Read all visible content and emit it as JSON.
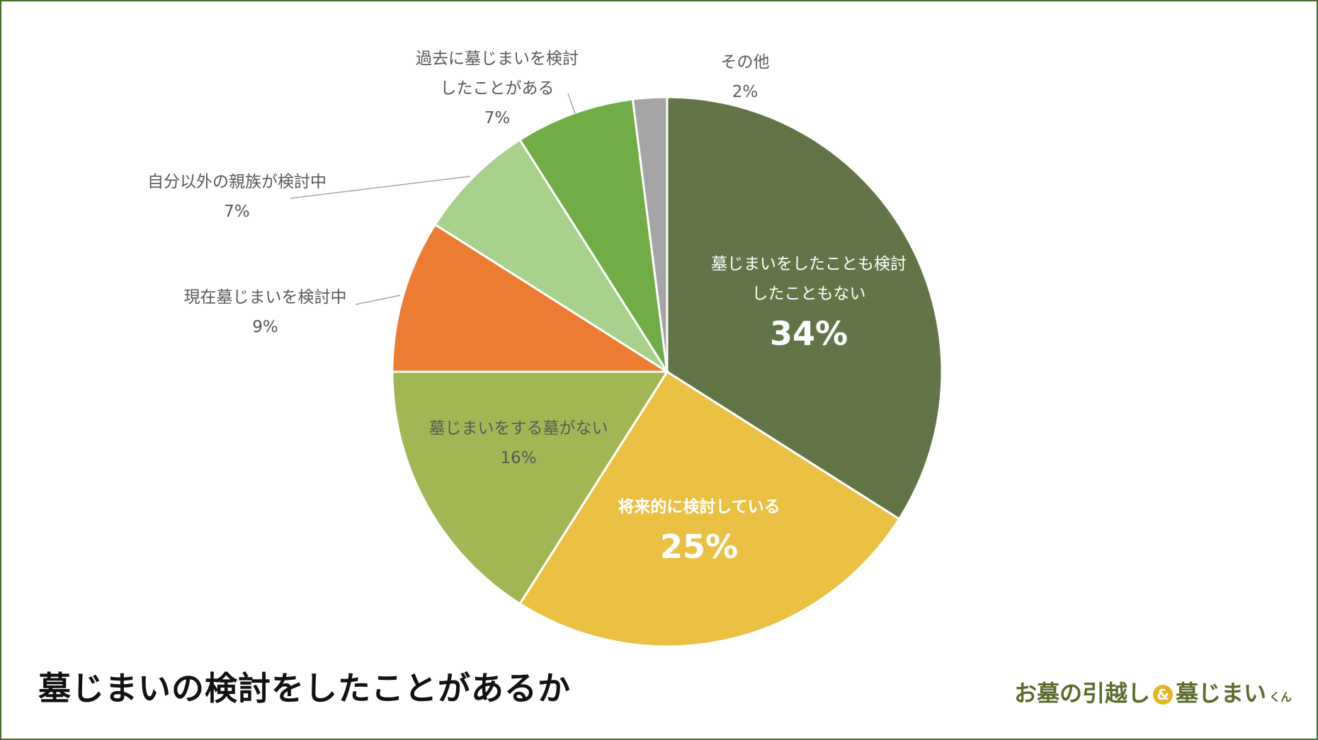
{
  "title": "墓じまいの検討をしたことがあるか",
  "logo": {
    "part1": "お墓の引越し",
    "amp": "&",
    "part2": "墓じまい",
    "suffix": "くん"
  },
  "chart_data": {
    "type": "pie",
    "title": "墓じまいの検討をしたことがあるか",
    "start_angle": "top, clockwise",
    "slices": [
      {
        "label_lines": [
          "墓じまいをしたことも検討",
          "したこともない"
        ],
        "value": 34,
        "display": "34%",
        "color": "#637546"
      },
      {
        "label_lines": [
          "将来的に検討している"
        ],
        "value": 25,
        "display": "25%",
        "color": "#ebc144"
      },
      {
        "label_lines": [
          "墓じまいをする墓がない"
        ],
        "value": 16,
        "display": "16%",
        "color": "#a3b654"
      },
      {
        "label_lines": [
          "現在墓じまいを検討中"
        ],
        "value": 9,
        "display": "9%",
        "color": "#eb7c31"
      },
      {
        "label_lines": [
          "自分以外の親族が検討中"
        ],
        "value": 7,
        "display": "7%",
        "color": "#a9d18e"
      },
      {
        "label_lines": [
          "過去に墓じまいを検討",
          "したことがある"
        ],
        "value": 7,
        "display": "7%",
        "color": "#70ad47"
      },
      {
        "label_lines": [
          "その他"
        ],
        "value": 2,
        "display": "2%",
        "color": "#a5a5a5"
      }
    ]
  }
}
